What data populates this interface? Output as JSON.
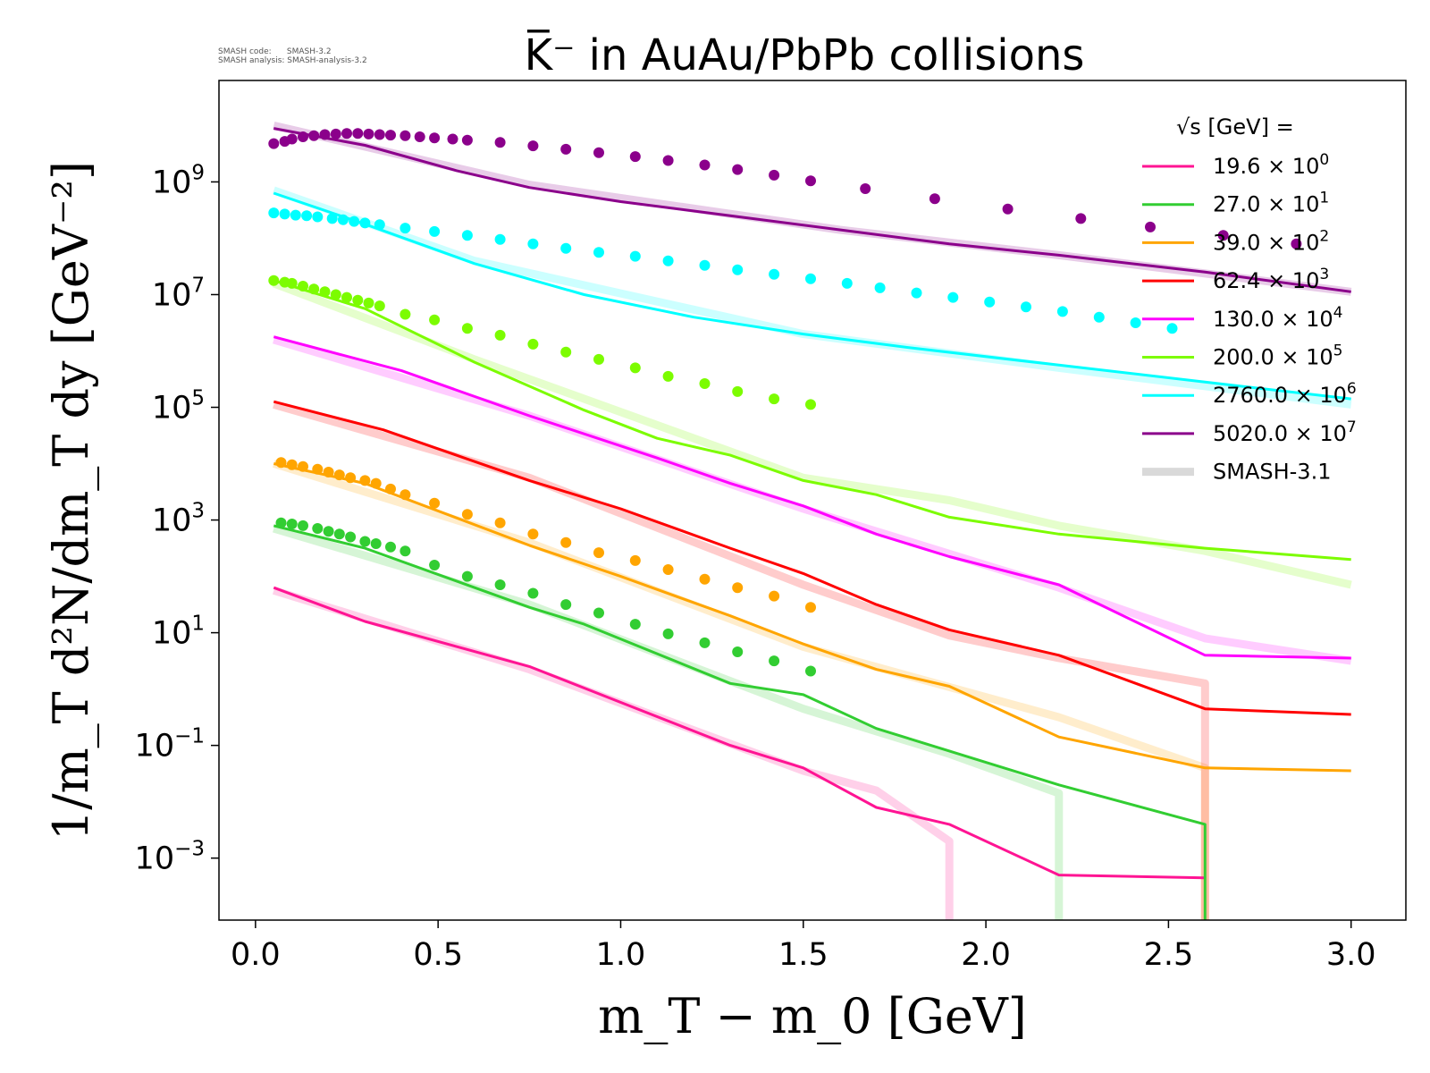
{
  "meta": {
    "code_line": "SMASH code:      SMASH-3.2",
    "analysis_line": "SMASH analysis: SMASH-analysis-3.2"
  },
  "chart_data": {
    "type": "line",
    "title": "K̅⁻ in AuAu/PbPb collisions",
    "xlabel": "m_T − m_0 [GeV]",
    "ylabel": "1/m_T d²N/dm_T dy [GeV⁻²]",
    "xlim": [
      -0.1,
      3.15
    ],
    "ylim_log10": [
      -4.1,
      10.8
    ],
    "yscale": "log",
    "grid": false,
    "legend_position": "top-right",
    "legend_header": "√s [GeV] =",
    "x_ticks": [
      0.0,
      0.5,
      1.0,
      1.5,
      2.0,
      2.5,
      3.0
    ],
    "x_tick_labels": [
      "0.0",
      "0.5",
      "1.0",
      "1.5",
      "2.0",
      "2.5",
      "3.0"
    ],
    "y_tick_exponents": [
      9,
      7,
      5,
      3,
      1,
      -1,
      -3
    ],
    "comparison_label": "SMASH-3.1",
    "comparison_color": "#d9d9d9",
    "series": [
      {
        "energy": "19.6",
        "exp": "0",
        "color": "#ff1493",
        "smash32": [
          [
            0.05,
            1.8
          ],
          [
            0.3,
            1.2
          ],
          [
            0.75,
            0.4
          ],
          [
            1.3,
            -1.0
          ],
          [
            1.5,
            -1.4
          ],
          [
            1.7,
            -2.1
          ],
          [
            1.9,
            -2.4
          ],
          [
            2.2,
            -3.3
          ],
          [
            2.6,
            -3.35
          ]
        ],
        "smash31": [
          [
            0.05,
            1.75
          ],
          [
            0.75,
            0.35
          ],
          [
            1.5,
            -1.45
          ],
          [
            1.7,
            -1.8
          ],
          [
            1.9,
            -2.7
          ],
          [
            1.9,
            -4.1
          ]
        ],
        "data": []
      },
      {
        "energy": "27.0",
        "exp": "1",
        "color": "#32cd32",
        "smash32": [
          [
            0.05,
            2.9
          ],
          [
            0.3,
            2.5
          ],
          [
            0.75,
            1.45
          ],
          [
            0.9,
            1.15
          ],
          [
            1.3,
            0.1
          ],
          [
            1.5,
            -0.1
          ],
          [
            1.7,
            -0.7
          ],
          [
            1.9,
            -1.1
          ],
          [
            2.2,
            -1.7
          ],
          [
            2.6,
            -2.4
          ],
          [
            2.6,
            -4.1
          ]
        ],
        "smash31": [
          [
            0.05,
            2.85
          ],
          [
            0.75,
            1.5
          ],
          [
            1.5,
            -0.35
          ],
          [
            1.9,
            -1.15
          ],
          [
            2.2,
            -1.85
          ],
          [
            2.2,
            -4.1
          ]
        ],
        "data": [
          [
            0.07,
            2.95
          ],
          [
            0.1,
            2.93
          ],
          [
            0.13,
            2.9
          ],
          [
            0.17,
            2.85
          ],
          [
            0.2,
            2.8
          ],
          [
            0.23,
            2.75
          ],
          [
            0.26,
            2.7
          ],
          [
            0.3,
            2.62
          ],
          [
            0.33,
            2.58
          ],
          [
            0.37,
            2.52
          ],
          [
            0.41,
            2.45
          ],
          [
            0.49,
            2.2
          ],
          [
            0.58,
            2.0
          ],
          [
            0.67,
            1.85
          ],
          [
            0.76,
            1.7
          ],
          [
            0.85,
            1.5
          ],
          [
            0.94,
            1.35
          ],
          [
            1.04,
            1.15
          ],
          [
            1.13,
            0.98
          ],
          [
            1.23,
            0.82
          ],
          [
            1.32,
            0.66
          ],
          [
            1.42,
            0.5
          ],
          [
            1.52,
            0.32
          ]
        ]
      },
      {
        "energy": "39.0",
        "exp": "2",
        "color": "#ffa500",
        "smash32": [
          [
            0.05,
            4.0
          ],
          [
            0.3,
            3.65
          ],
          [
            0.75,
            2.55
          ],
          [
            1.0,
            2.0
          ],
          [
            1.3,
            1.3
          ],
          [
            1.5,
            0.8
          ],
          [
            1.7,
            0.35
          ],
          [
            1.9,
            0.05
          ],
          [
            2.2,
            -0.85
          ],
          [
            2.6,
            -1.4
          ],
          [
            3.0,
            -1.45
          ]
        ],
        "smash31": [
          [
            0.05,
            4.0
          ],
          [
            0.75,
            2.6
          ],
          [
            1.5,
            0.75
          ],
          [
            2.2,
            -0.5
          ],
          [
            2.6,
            -1.4
          ],
          [
            2.6,
            -4.1
          ]
        ],
        "data": [
          [
            0.07,
            4.02
          ],
          [
            0.1,
            3.98
          ],
          [
            0.13,
            3.95
          ],
          [
            0.17,
            3.9
          ],
          [
            0.2,
            3.85
          ],
          [
            0.23,
            3.8
          ],
          [
            0.26,
            3.75
          ],
          [
            0.3,
            3.7
          ],
          [
            0.33,
            3.65
          ],
          [
            0.37,
            3.55
          ],
          [
            0.41,
            3.45
          ],
          [
            0.49,
            3.3
          ],
          [
            0.58,
            3.1
          ],
          [
            0.67,
            2.95
          ],
          [
            0.76,
            2.75
          ],
          [
            0.85,
            2.6
          ],
          [
            0.94,
            2.42
          ],
          [
            1.04,
            2.28
          ],
          [
            1.13,
            2.12
          ],
          [
            1.23,
            1.95
          ],
          [
            1.32,
            1.8
          ],
          [
            1.42,
            1.65
          ],
          [
            1.52,
            1.45
          ]
        ]
      },
      {
        "energy": "62.4",
        "exp": "3",
        "color": "#ff0000",
        "smash32": [
          [
            0.05,
            5.1
          ],
          [
            0.35,
            4.6
          ],
          [
            0.75,
            3.7
          ],
          [
            1.0,
            3.2
          ],
          [
            1.3,
            2.5
          ],
          [
            1.5,
            2.05
          ],
          [
            1.7,
            1.5
          ],
          [
            1.9,
            1.05
          ],
          [
            2.2,
            0.6
          ],
          [
            2.6,
            -0.35
          ],
          [
            3.0,
            -0.45
          ]
        ],
        "smash31": [
          [
            0.05,
            5.05
          ],
          [
            0.75,
            3.75
          ],
          [
            1.5,
            1.85
          ],
          [
            1.9,
            0.95
          ],
          [
            2.2,
            0.55
          ],
          [
            2.6,
            0.1
          ],
          [
            2.6,
            -4.1
          ]
        ],
        "data": []
      },
      {
        "energy": "130.0",
        "exp": "4",
        "color": "#ff00ff",
        "smash32": [
          [
            0.05,
            6.25
          ],
          [
            0.4,
            5.65
          ],
          [
            0.75,
            4.85
          ],
          [
            1.1,
            4.1
          ],
          [
            1.3,
            3.65
          ],
          [
            1.5,
            3.25
          ],
          [
            1.7,
            2.75
          ],
          [
            1.9,
            2.35
          ],
          [
            2.2,
            1.85
          ],
          [
            2.6,
            0.6
          ],
          [
            3.0,
            0.55
          ]
        ],
        "smash31": [
          [
            0.05,
            6.2
          ],
          [
            0.75,
            4.85
          ],
          [
            1.5,
            3.2
          ],
          [
            2.2,
            1.8
          ],
          [
            2.6,
            0.9
          ],
          [
            3.0,
            0.5
          ]
        ],
        "data": []
      },
      {
        "energy": "200.0",
        "exp": "5",
        "color": "#7cfc00",
        "smash32": [
          [
            0.05,
            7.25
          ],
          [
            0.3,
            6.75
          ],
          [
            0.6,
            5.8
          ],
          [
            0.9,
            4.95
          ],
          [
            1.1,
            4.45
          ],
          [
            1.3,
            4.15
          ],
          [
            1.5,
            3.7
          ],
          [
            1.7,
            3.45
          ],
          [
            1.9,
            3.05
          ],
          [
            2.2,
            2.75
          ],
          [
            2.6,
            2.5
          ],
          [
            3.0,
            2.3
          ]
        ],
        "smash31": [
          [
            0.05,
            7.2
          ],
          [
            0.6,
            5.85
          ],
          [
            1.5,
            3.75
          ],
          [
            1.9,
            3.35
          ],
          [
            2.2,
            2.9
          ],
          [
            2.6,
            2.45
          ],
          [
            3.0,
            1.85
          ]
        ],
        "data": [
          [
            0.05,
            7.25
          ],
          [
            0.08,
            7.22
          ],
          [
            0.1,
            7.2
          ],
          [
            0.13,
            7.15
          ],
          [
            0.16,
            7.1
          ],
          [
            0.19,
            7.05
          ],
          [
            0.22,
            7.0
          ],
          [
            0.25,
            6.95
          ],
          [
            0.28,
            6.9
          ],
          [
            0.31,
            6.85
          ],
          [
            0.34,
            6.8
          ],
          [
            0.41,
            6.65
          ],
          [
            0.49,
            6.55
          ],
          [
            0.58,
            6.4
          ],
          [
            0.67,
            6.28
          ],
          [
            0.76,
            6.12
          ],
          [
            0.85,
            5.98
          ],
          [
            0.94,
            5.85
          ],
          [
            1.04,
            5.7
          ],
          [
            1.13,
            5.55
          ],
          [
            1.23,
            5.42
          ],
          [
            1.32,
            5.28
          ],
          [
            1.42,
            5.15
          ],
          [
            1.52,
            5.05
          ]
        ]
      },
      {
        "energy": "2760.0",
        "exp": "6",
        "color": "#00ffff",
        "smash32": [
          [
            0.05,
            8.8
          ],
          [
            0.3,
            8.25
          ],
          [
            0.6,
            7.55
          ],
          [
            0.9,
            7.0
          ],
          [
            1.2,
            6.6
          ],
          [
            1.5,
            6.3
          ],
          [
            1.8,
            6.05
          ],
          [
            2.2,
            5.75
          ],
          [
            2.6,
            5.45
          ],
          [
            3.0,
            5.15
          ]
        ],
        "smash31": [
          [
            0.05,
            8.85
          ],
          [
            0.6,
            7.6
          ],
          [
            1.5,
            6.3
          ],
          [
            2.2,
            5.7
          ],
          [
            3.0,
            5.05
          ]
        ],
        "data": [
          [
            0.05,
            8.45
          ],
          [
            0.08,
            8.43
          ],
          [
            0.11,
            8.41
          ],
          [
            0.14,
            8.4
          ],
          [
            0.17,
            8.38
          ],
          [
            0.21,
            8.35
          ],
          [
            0.24,
            8.33
          ],
          [
            0.27,
            8.3
          ],
          [
            0.3,
            8.27
          ],
          [
            0.34,
            8.24
          ],
          [
            0.41,
            8.18
          ],
          [
            0.49,
            8.12
          ],
          [
            0.58,
            8.05
          ],
          [
            0.67,
            7.98
          ],
          [
            0.76,
            7.9
          ],
          [
            0.85,
            7.82
          ],
          [
            0.94,
            7.75
          ],
          [
            1.04,
            7.68
          ],
          [
            1.13,
            7.6
          ],
          [
            1.23,
            7.52
          ],
          [
            1.32,
            7.44
          ],
          [
            1.42,
            7.36
          ],
          [
            1.52,
            7.28
          ],
          [
            1.62,
            7.2
          ],
          [
            1.71,
            7.12
          ],
          [
            1.81,
            7.03
          ],
          [
            1.91,
            6.95
          ],
          [
            2.01,
            6.87
          ],
          [
            2.11,
            6.78
          ],
          [
            2.21,
            6.7
          ],
          [
            2.31,
            6.6
          ],
          [
            2.41,
            6.5
          ],
          [
            2.51,
            6.4
          ]
        ]
      },
      {
        "energy": "5020.0",
        "exp": "7",
        "color": "#8b008b",
        "smash32": [
          [
            0.05,
            9.95
          ],
          [
            0.3,
            9.65
          ],
          [
            0.55,
            9.2
          ],
          [
            0.75,
            8.9
          ],
          [
            1.0,
            8.65
          ],
          [
            1.3,
            8.4
          ],
          [
            1.6,
            8.15
          ],
          [
            1.9,
            7.9
          ],
          [
            2.2,
            7.7
          ],
          [
            2.6,
            7.4
          ],
          [
            3.0,
            7.05
          ]
        ],
        "smash31": [
          [
            0.05,
            10.0
          ],
          [
            0.75,
            8.95
          ],
          [
            1.6,
            8.15
          ],
          [
            2.2,
            7.7
          ],
          [
            3.0,
            7.05
          ]
        ],
        "data": [
          [
            0.05,
            9.68
          ],
          [
            0.08,
            9.72
          ],
          [
            0.1,
            9.76
          ],
          [
            0.13,
            9.8
          ],
          [
            0.16,
            9.82
          ],
          [
            0.19,
            9.84
          ],
          [
            0.22,
            9.85
          ],
          [
            0.25,
            9.86
          ],
          [
            0.28,
            9.86
          ],
          [
            0.31,
            9.85
          ],
          [
            0.34,
            9.84
          ],
          [
            0.37,
            9.83
          ],
          [
            0.41,
            9.82
          ],
          [
            0.45,
            9.8
          ],
          [
            0.49,
            9.78
          ],
          [
            0.54,
            9.76
          ],
          [
            0.58,
            9.74
          ],
          [
            0.67,
            9.7
          ],
          [
            0.76,
            9.64
          ],
          [
            0.85,
            9.58
          ],
          [
            0.94,
            9.52
          ],
          [
            1.04,
            9.45
          ],
          [
            1.13,
            9.38
          ],
          [
            1.23,
            9.3
          ],
          [
            1.32,
            9.22
          ],
          [
            1.42,
            9.12
          ],
          [
            1.52,
            9.02
          ],
          [
            1.67,
            8.88
          ],
          [
            1.86,
            8.7
          ],
          [
            2.06,
            8.52
          ],
          [
            2.26,
            8.35
          ],
          [
            2.45,
            8.2
          ],
          [
            2.65,
            8.05
          ],
          [
            2.85,
            7.9
          ]
        ]
      }
    ]
  }
}
